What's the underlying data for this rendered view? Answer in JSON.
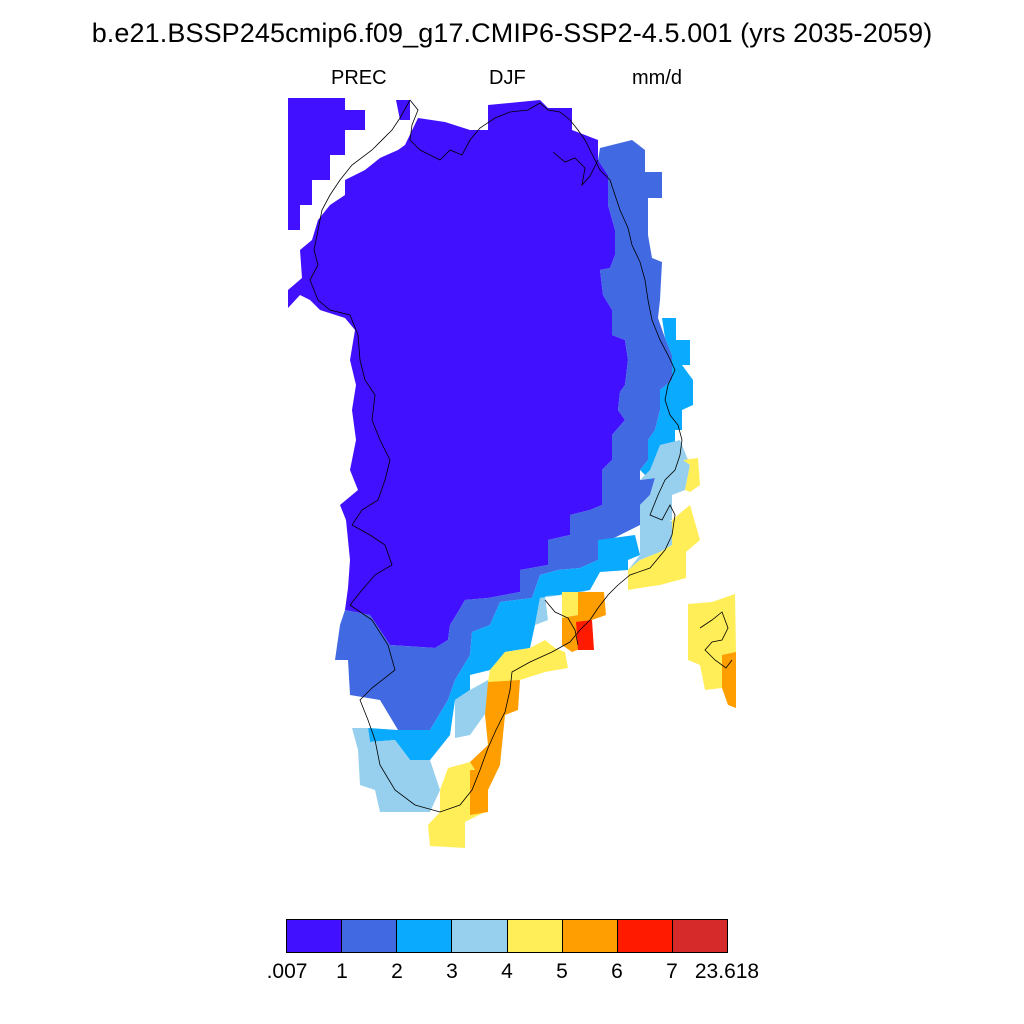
{
  "title": "b.e21.BSSP245cmip6.f09_g17.CMIP6-SSP2-4.5.001 (yrs 2035-2059)",
  "subtitle": {
    "variable": "PREC",
    "season": "DJF",
    "units": "mm/d"
  },
  "colorbar": {
    "colors": [
      "#4010ff",
      "#4169e1",
      "#0aaaff",
      "#96d0ee",
      "#ffee58",
      "#ff9e00",
      "#ff1a00",
      "#d62a2a"
    ],
    "labels": [
      ".007",
      "1",
      "2",
      "3",
      "4",
      "5",
      "6",
      "7",
      "23.618"
    ]
  },
  "map": {
    "region": "Greenland",
    "coastlines": true
  }
}
